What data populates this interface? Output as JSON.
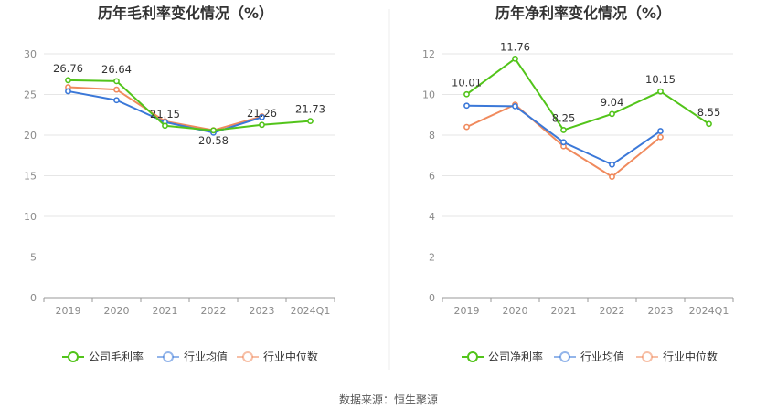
{
  "source_label": "数据来源：恒生聚源",
  "chart_data": [
    {
      "type": "line",
      "title": "历年毛利率变化情况（%）",
      "categories": [
        "2019",
        "2020",
        "2021",
        "2022",
        "2023",
        "2024Q1"
      ],
      "ylim": [
        0,
        30
      ],
      "yticks": [
        0,
        5,
        10,
        15,
        20,
        25,
        30
      ],
      "grid": true,
      "legend_position": "bottom",
      "series": [
        {
          "name": "公司毛利率",
          "color": "#52c41a",
          "values": [
            26.76,
            26.64,
            21.15,
            20.58,
            21.26,
            21.73
          ],
          "labels": [
            "26.76",
            "26.64",
            "21.15",
            "20.58",
            "21.26",
            "21.73"
          ]
        },
        {
          "name": "行业均值",
          "color": "#3b78d8",
          "values": [
            25.4,
            24.3,
            21.6,
            20.3,
            22.2,
            null
          ]
        },
        {
          "name": "行业中位数",
          "color": "#f08a5d",
          "values": [
            25.9,
            25.6,
            21.7,
            20.6,
            22.3,
            null
          ]
        }
      ]
    },
    {
      "type": "line",
      "title": "历年净利率变化情况（%）",
      "categories": [
        "2019",
        "2020",
        "2021",
        "2022",
        "2023",
        "2024Q1"
      ],
      "ylim": [
        0,
        12
      ],
      "yticks": [
        0,
        2,
        4,
        6,
        8,
        10,
        12
      ],
      "grid": true,
      "legend_position": "bottom",
      "series": [
        {
          "name": "公司净利率",
          "color": "#52c41a",
          "values": [
            10.01,
            11.76,
            8.25,
            9.04,
            10.15,
            8.55
          ],
          "labels": [
            "10.01",
            "11.76",
            "8.25",
            "9.04",
            "10.15",
            "8.55"
          ]
        },
        {
          "name": "行业均值",
          "color": "#3b78d8",
          "values": [
            9.45,
            9.42,
            7.65,
            6.55,
            8.2,
            null
          ]
        },
        {
          "name": "行业中位数",
          "color": "#f08a5d",
          "values": [
            8.4,
            9.5,
            7.45,
            5.95,
            7.9,
            null
          ]
        }
      ]
    }
  ]
}
